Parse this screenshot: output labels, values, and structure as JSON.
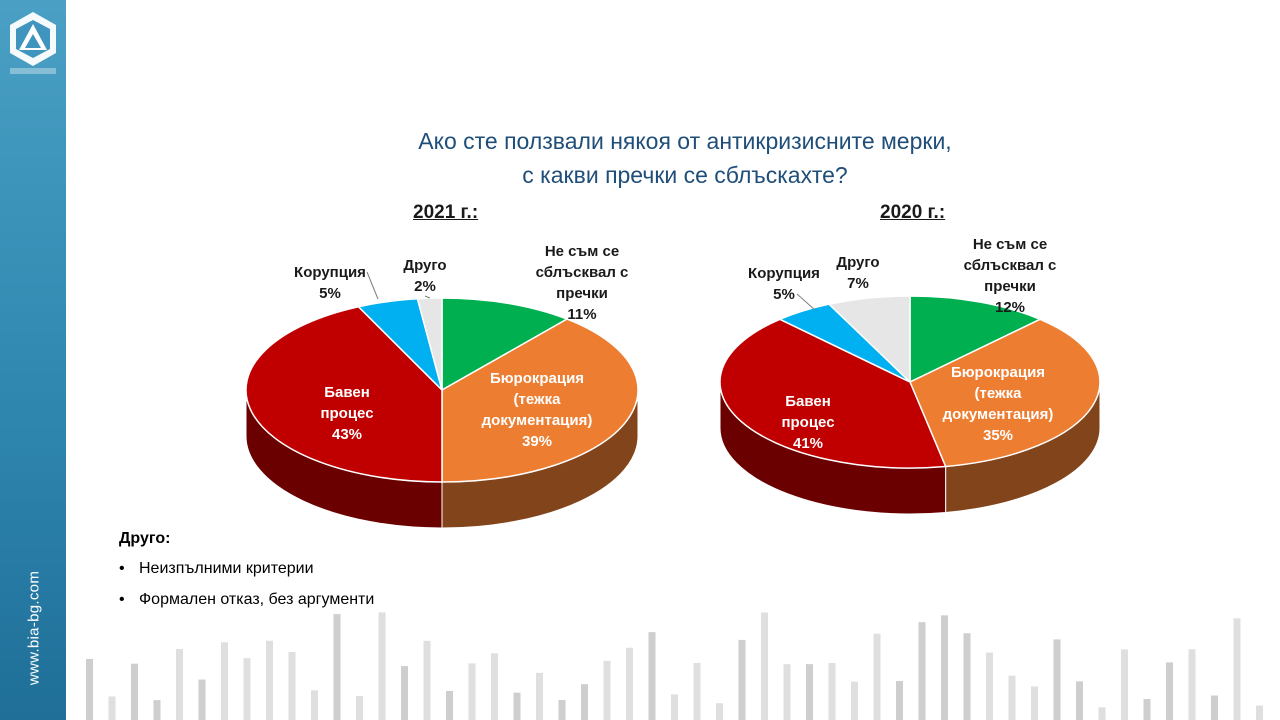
{
  "slide": {
    "title_line1": "Ако сте ползвали някоя от антикризисните мерки,",
    "title_line2": "с какви пречки се сблъскахте?",
    "site": "www.bia-bg.com"
  },
  "colors": {
    "sidebar": "#2f87b0",
    "title": "#1f4e79",
    "no_obstacles": "#00b050",
    "bureaucracy": "#ed7d31",
    "slow_process": "#c00000",
    "corruption": "#00b0f0",
    "other": "#e6e6e6"
  },
  "legend_note": {
    "heading": "Друго:",
    "items": [
      "Неизпълними  критерии",
      "Формален  отказ, без аргументи"
    ]
  },
  "chart_data": [
    {
      "type": "pie",
      "title": "2021 г.:",
      "slices": [
        {
          "label": "Не съм се сблъсквал с пречки",
          "value": 11,
          "display": "11%"
        },
        {
          "label": "Бюрокрация (тежка документация)",
          "value": 39,
          "display": "39%"
        },
        {
          "label": "Бавен процес",
          "value": 43,
          "display": "43%"
        },
        {
          "label": "Корупция",
          "value": 5,
          "display": "5%"
        },
        {
          "label": "Друго",
          "value": 2,
          "display": "2%"
        }
      ]
    },
    {
      "type": "pie",
      "title": "2020 г.:",
      "slices": [
        {
          "label": "Не съм се сблъсквал с пречки",
          "value": 12,
          "display": "12%"
        },
        {
          "label": "Бюрокрация (тежка документация)",
          "value": 35,
          "display": "35%"
        },
        {
          "label": "Бавен процес",
          "value": 41,
          "display": "41%"
        },
        {
          "label": "Корупция",
          "value": 5,
          "display": "5%"
        },
        {
          "label": "Друго",
          "value": 7,
          "display": "7%"
        }
      ]
    }
  ]
}
